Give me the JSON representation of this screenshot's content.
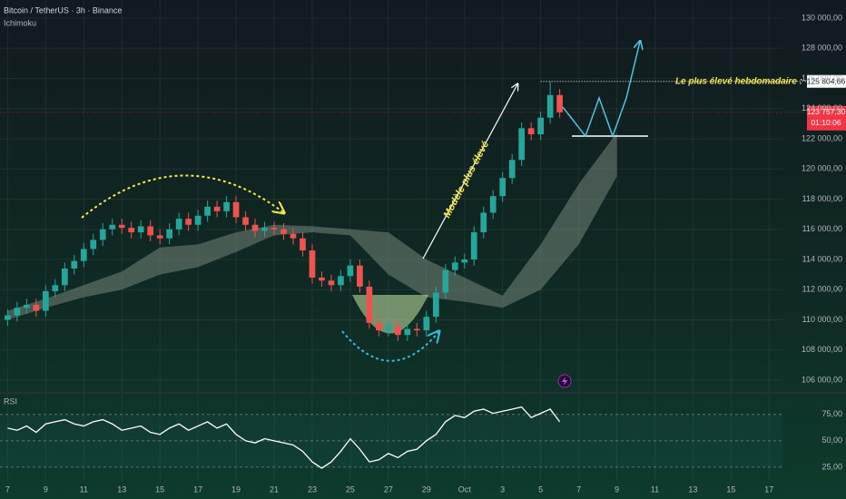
{
  "chart_data": {
    "type": "candlestick",
    "title": "Bitcoin / TetherUS · 3h · Binance",
    "indicator": "Ichimoku",
    "up_color": "#26a69a",
    "down_color": "#ef5350",
    "x": [
      0,
      0.5,
      1,
      1.5,
      2,
      2.5,
      3,
      3.5,
      4,
      4.5,
      5,
      5.5,
      6,
      6.5,
      7,
      7.5,
      8,
      8.5,
      9,
      9.5,
      10,
      10.5,
      11,
      11.5,
      12,
      12.5,
      13,
      13.5,
      14,
      14.5,
      15,
      15.5,
      16,
      16.5,
      17,
      17.5,
      18,
      18.5,
      19,
      19.5,
      20,
      20.5,
      21,
      21.5,
      22,
      22.5,
      23,
      23.5,
      24,
      24.5,
      25,
      25.5,
      26,
      26.5,
      27,
      27.5,
      28,
      28.5,
      29
    ],
    "open": [
      110000,
      110300,
      110800,
      111000,
      110600,
      111900,
      112300,
      113400,
      113900,
      114700,
      115300,
      116000,
      116300,
      116100,
      115800,
      116200,
      115600,
      115400,
      116000,
      116700,
      116300,
      116900,
      117500,
      117200,
      117800,
      116800,
      116300,
      115900,
      116100,
      116000,
      115700,
      115400,
      114600,
      112800,
      112600,
      112300,
      112900,
      113600,
      112200,
      109800,
      109300,
      109600,
      109000,
      109400,
      109300,
      110200,
      111800,
      113300,
      113800,
      114000,
      115800,
      117100,
      118200,
      119400,
      120600,
      122700,
      122300,
      123400,
      124900
    ],
    "high": [
      110700,
      111200,
      111400,
      111400,
      112300,
      112700,
      113800,
      114300,
      115100,
      115700,
      116400,
      116700,
      116700,
      116500,
      116600,
      116600,
      116000,
      116400,
      117100,
      117100,
      117300,
      117900,
      117900,
      118200,
      118200,
      117200,
      116700,
      116500,
      116500,
      116400,
      116100,
      115800,
      115000,
      113200,
      113000,
      113300,
      114000,
      114000,
      112600,
      110200,
      110000,
      110000,
      109800,
      109800,
      110600,
      112200,
      113700,
      114200,
      114400,
      116200,
      117500,
      118600,
      119800,
      121000,
      123100,
      123100,
      123800,
      125800,
      125300
    ],
    "low": [
      109600,
      109900,
      110400,
      110200,
      110200,
      111500,
      111900,
      113000,
      113500,
      114300,
      114900,
      115600,
      115700,
      115400,
      115400,
      115200,
      115000,
      115000,
      115600,
      115900,
      115900,
      116500,
      116800,
      116800,
      116400,
      115900,
      115500,
      115500,
      115600,
      115300,
      115000,
      114200,
      112400,
      112200,
      111900,
      111900,
      112500,
      111800,
      109400,
      108900,
      108900,
      108600,
      108600,
      108900,
      108900,
      109800,
      111400,
      112900,
      113400,
      113600,
      115400,
      116700,
      117800,
      119000,
      120200,
      121900,
      121900,
      123000,
      123400
    ],
    "close": [
      110300,
      110800,
      111000,
      110600,
      111900,
      112300,
      113400,
      113900,
      114700,
      115300,
      116000,
      116300,
      116100,
      115800,
      116200,
      115600,
      115400,
      116000,
      116700,
      116300,
      116900,
      117500,
      117200,
      117800,
      116800,
      116300,
      115900,
      116100,
      116000,
      115700,
      115400,
      114600,
      112800,
      112600,
      112300,
      112900,
      113600,
      112200,
      109800,
      109300,
      109600,
      109000,
      109400,
      109300,
      110200,
      111800,
      113300,
      113800,
      114000,
      115800,
      117100,
      118200,
      119400,
      120600,
      122700,
      122300,
      123400,
      124900,
      123757.3
    ],
    "xlim": [
      -0.4,
      40.7
    ],
    "xticks": [
      {
        "value": 0,
        "label": "7"
      },
      {
        "value": 2,
        "label": "9"
      },
      {
        "value": 4,
        "label": "11"
      },
      {
        "value": 6,
        "label": "13"
      },
      {
        "value": 8,
        "label": "15"
      },
      {
        "value": 10,
        "label": "17"
      },
      {
        "value": 12,
        "label": "19"
      },
      {
        "value": 14,
        "label": "21"
      },
      {
        "value": 16,
        "label": "23"
      },
      {
        "value": 18,
        "label": "25"
      },
      {
        "value": 20,
        "label": "27"
      },
      {
        "value": 22,
        "label": "29"
      },
      {
        "value": 24,
        "label": "Oct"
      },
      {
        "value": 26,
        "label": "3"
      },
      {
        "value": 28,
        "label": "5"
      },
      {
        "value": 30,
        "label": "7"
      },
      {
        "value": 32,
        "label": "9"
      },
      {
        "value": 34,
        "label": "11"
      },
      {
        "value": 36,
        "label": "13"
      },
      {
        "value": 38,
        "label": "15"
      },
      {
        "value": 40,
        "label": "17"
      }
    ],
    "ylim": [
      105340,
      131200
    ],
    "yticks": [
      {
        "value": 106000,
        "label": "106 000,00"
      },
      {
        "value": 108000,
        "label": "108 000,00"
      },
      {
        "value": 110000,
        "label": "110 000,00"
      },
      {
        "value": 112000,
        "label": "112 000,00"
      },
      {
        "value": 114000,
        "label": "114 000,00"
      },
      {
        "value": 116000,
        "label": "116 000,00"
      },
      {
        "value": 118000,
        "label": "118 000,00"
      },
      {
        "value": 120000,
        "label": "120 000,00"
      },
      {
        "value": 122000,
        "label": "122 000,00"
      },
      {
        "value": 124000,
        "label": "124 000,00"
      },
      {
        "value": 126000,
        "label": "126 000,00"
      },
      {
        "value": 128000,
        "label": "128 000,00"
      },
      {
        "value": 130000,
        "label": "130 000,00"
      }
    ],
    "cloud": {
      "color": "#8a9a8c",
      "x": [
        0,
        2,
        4,
        6,
        8,
        10,
        12,
        14,
        16,
        18,
        20,
        22,
        24,
        26,
        28,
        30,
        32
      ],
      "span_a": [
        110000,
        110800,
        111500,
        112000,
        113000,
        113500,
        114500,
        115600,
        115800,
        115600,
        113000,
        111500,
        111200,
        110800,
        112000,
        115000,
        119500
      ],
      "span_b": [
        110600,
        111400,
        112300,
        113200,
        114800,
        115000,
        115800,
        116300,
        116200,
        116000,
        115800,
        114000,
        112800,
        111600,
        115000,
        119000,
        122400
      ]
    },
    "weekly_high": {
      "value": 125804.66,
      "label": "125 804,66",
      "text": "Le plus élevé hebdomadaire :"
    },
    "current_price": {
      "value": 123757.3,
      "label": "123 757,30",
      "countdown": "01:10:06"
    },
    "annotation": "Modèle plus élevé",
    "rsi": {
      "title": "RSI",
      "color": "#ffffff",
      "values": [
        62,
        60,
        64,
        58,
        66,
        68,
        70,
        66,
        64,
        68,
        70,
        66,
        60,
        62,
        64,
        58,
        56,
        62,
        66,
        60,
        64,
        68,
        62,
        66,
        56,
        50,
        48,
        52,
        50,
        48,
        46,
        40,
        30,
        24,
        30,
        40,
        52,
        42,
        30,
        32,
        38,
        34,
        40,
        42,
        50,
        56,
        68,
        74,
        72,
        78,
        80,
        76,
        78,
        80,
        82,
        72,
        76,
        80,
        68
      ],
      "ylim": [
        12,
        92
      ],
      "yticks": [
        {
          "value": 75,
          "label": "75,00"
        },
        {
          "value": 50,
          "label": "50,00"
        },
        {
          "value": 25,
          "label": "25,00"
        }
      ]
    }
  }
}
